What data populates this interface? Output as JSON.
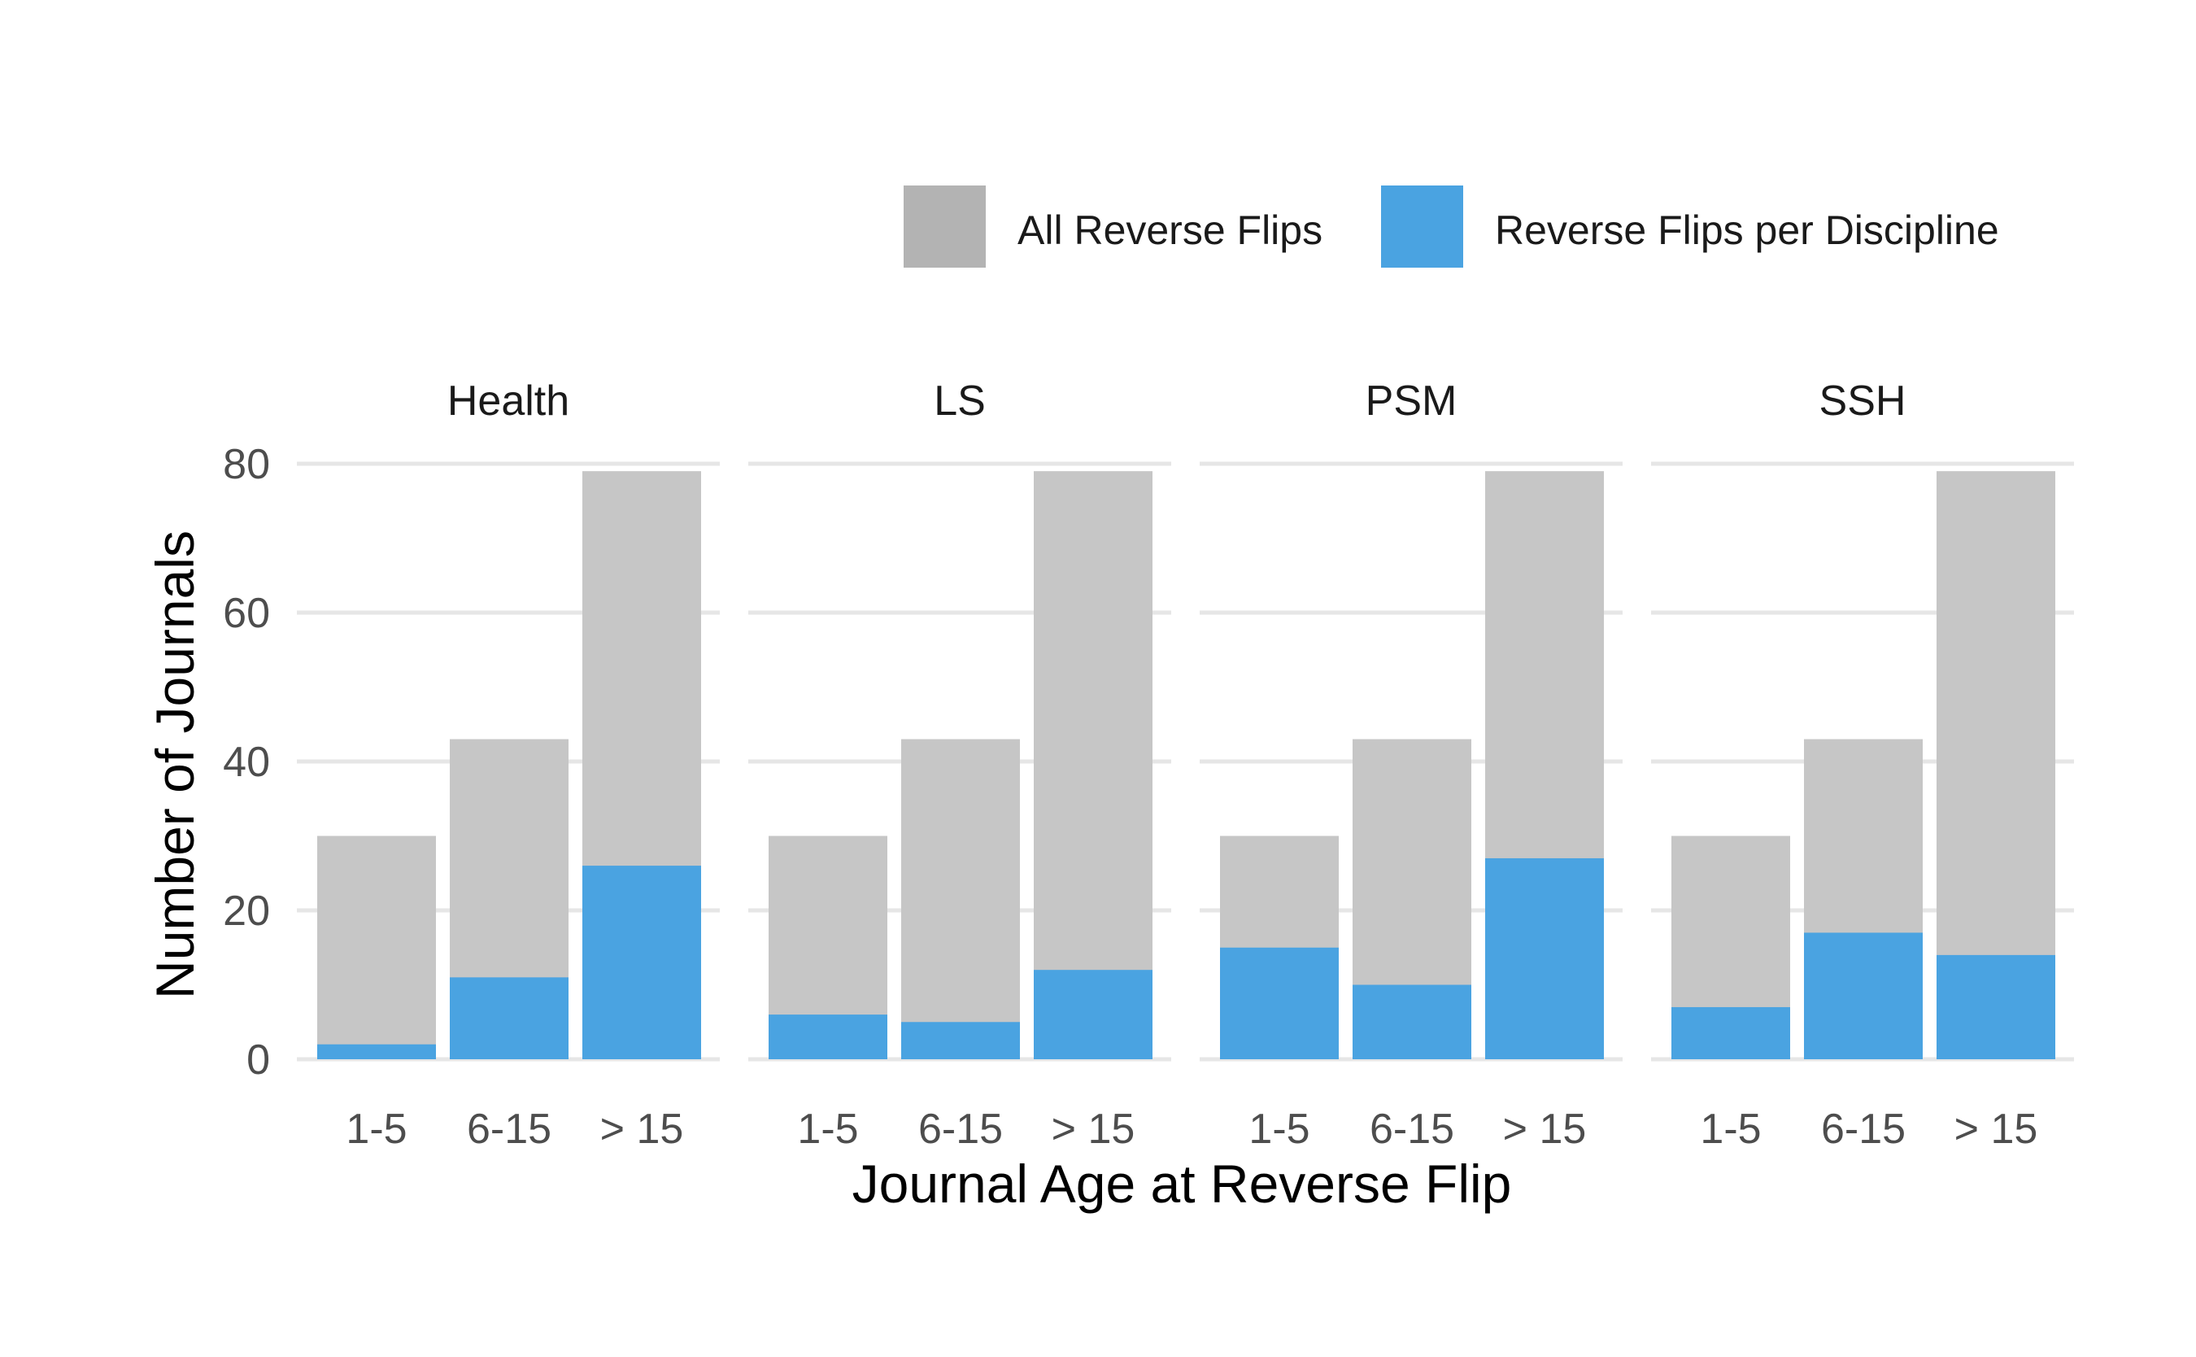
{
  "chart_data": {
    "type": "bar",
    "xlabel": "Journal Age at Reverse Flip",
    "ylabel": "Number of Journals",
    "ylim": [
      0,
      80
    ],
    "yticks": [
      0,
      20,
      40,
      60,
      80
    ],
    "categories": [
      "1-5",
      "6-15",
      "> 15"
    ],
    "grid": true,
    "legend_position": "top-right",
    "legend": [
      {
        "label": "All Reverse Flips",
        "color": "#b3b3b3"
      },
      {
        "label": "Reverse Flips per Discipline",
        "color": "#4aa3e1"
      }
    ],
    "colors": {
      "all": "#c6c6c6",
      "discipline": "#4aa3e1",
      "grid": "#e6e6e6"
    },
    "panels": [
      {
        "title": "Health",
        "all": [
          30,
          43,
          79
        ],
        "discipline": [
          2,
          11,
          26
        ]
      },
      {
        "title": "LS",
        "all": [
          30,
          43,
          79
        ],
        "discipline": [
          6,
          5,
          12
        ]
      },
      {
        "title": "PSM",
        "all": [
          30,
          43,
          79
        ],
        "discipline": [
          15,
          10,
          27
        ]
      },
      {
        "title": "SSH",
        "all": [
          30,
          43,
          79
        ],
        "discipline": [
          7,
          17,
          14
        ]
      }
    ]
  }
}
